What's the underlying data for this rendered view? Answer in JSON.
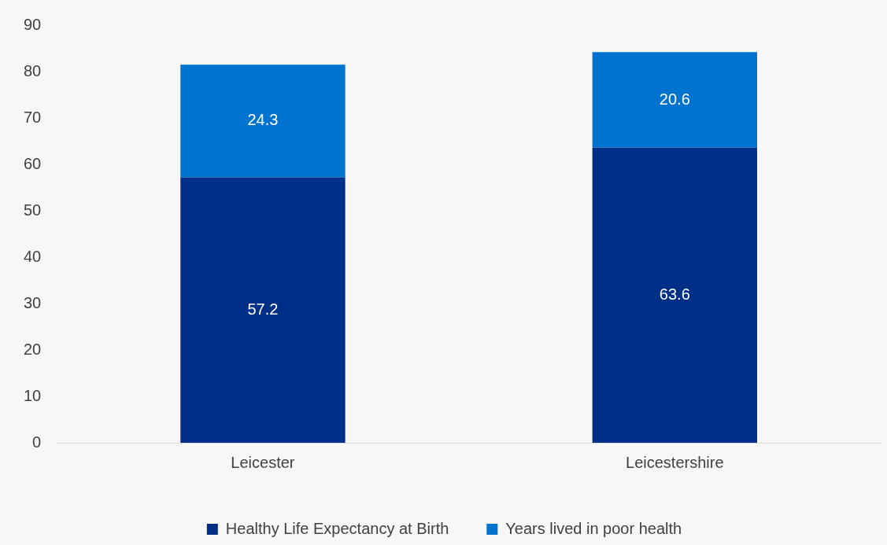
{
  "chart_data": {
    "type": "bar",
    "stacked": true,
    "categories": [
      "Leicester",
      "Leicestershire"
    ],
    "series": [
      {
        "name": "Healthy Life Expectancy at Birth",
        "color": "#002f87",
        "values": [
          57.2,
          63.6
        ]
      },
      {
        "name": "Years lived in poor health",
        "color": "#0073cf",
        "values": [
          24.3,
          20.6
        ]
      }
    ],
    "ylim": [
      0,
      90
    ],
    "yticks": [
      0,
      10,
      20,
      30,
      40,
      50,
      60,
      70,
      80,
      90
    ],
    "grid": false,
    "legend": "bottom",
    "data_labels": true
  }
}
